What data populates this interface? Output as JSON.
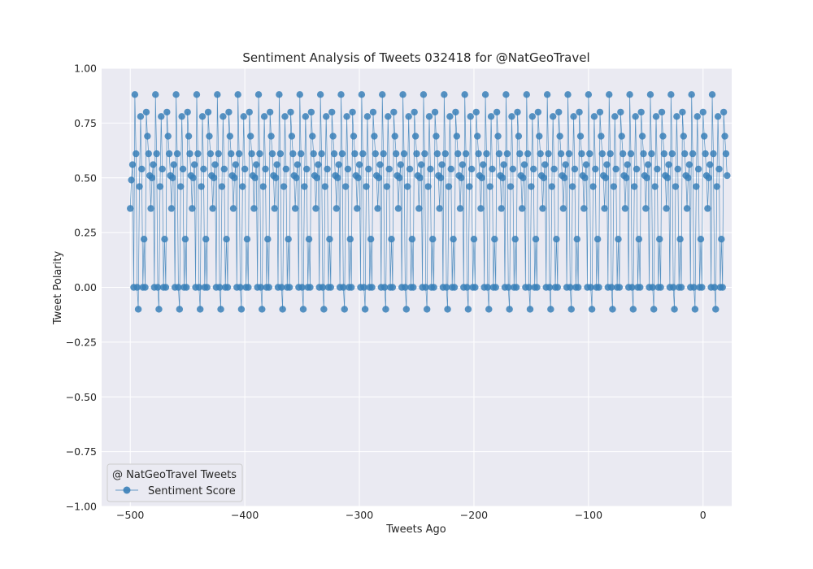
{
  "chart_data": {
    "type": "line",
    "title": "Sentiment Analysis of Tweets 032418 for @NatGeoTravel",
    "xlabel": "Tweets Ago",
    "ylabel": "Tweet Polarity",
    "xlim": [
      -525,
      25
    ],
    "ylim": [
      -1.0,
      1.0
    ],
    "xticks": [
      -500,
      -400,
      -300,
      -200,
      -100,
      0
    ],
    "xtick_labels": [
      "−500",
      "−400",
      "−300",
      "−200",
      "−100",
      "0"
    ],
    "yticks": [
      -1.0,
      -0.75,
      -0.5,
      -0.25,
      0.0,
      0.25,
      0.5,
      0.75,
      1.0
    ],
    "ytick_labels": [
      "−1.00",
      "−0.75",
      "−0.50",
      "−0.25",
      "0.00",
      "0.25",
      "0.50",
      "0.75",
      "1.00"
    ],
    "grid": true,
    "legend": {
      "title": "@ NatGeoTravel Tweets",
      "placement": "lower-left"
    },
    "series": [
      {
        "name": "Sentiment Score",
        "color": "#3a80b8",
        "marker": "circle",
        "x_start": -500,
        "x_step": 1,
        "values": [
          0.36,
          0.49,
          0.56,
          0.0,
          0.88,
          0.61,
          0.0,
          -0.1,
          0.46,
          0.78,
          0.54,
          0.0,
          0.22,
          0.0,
          0.8,
          0.69,
          0.61,
          0.51,
          0.36,
          0.5,
          0.56,
          0.0,
          0.88,
          0.61,
          0.0,
          -0.1,
          0.46,
          0.78,
          0.54,
          0.0,
          0.22,
          0.0,
          0.8,
          0.69,
          0.61,
          0.51,
          0.36,
          0.5,
          0.56,
          0.0,
          0.88,
          0.61,
          0.0,
          -0.1,
          0.46,
          0.78,
          0.54,
          0.0,
          0.22,
          0.0,
          0.8,
          0.69,
          0.61,
          0.51,
          0.36,
          0.5,
          0.56,
          0.0,
          0.88,
          0.61,
          0.0,
          -0.1,
          0.46,
          0.78,
          0.54,
          0.0,
          0.22,
          0.0,
          0.8,
          0.69,
          0.61,
          0.51,
          0.36,
          0.5,
          0.56,
          0.0,
          0.88,
          0.61,
          0.0,
          -0.1,
          0.46,
          0.78,
          0.54,
          0.0,
          0.22,
          0.0,
          0.8,
          0.69,
          0.61,
          0.51,
          0.36,
          0.5,
          0.56,
          0.0,
          0.88,
          0.61,
          0.0,
          -0.1,
          0.46,
          0.78,
          0.54,
          0.0,
          0.22,
          0.0,
          0.8,
          0.69,
          0.61,
          0.51,
          0.36,
          0.5,
          0.56,
          0.0,
          0.88,
          0.61,
          0.0,
          -0.1,
          0.46,
          0.78,
          0.54,
          0.0,
          0.22,
          0.0,
          0.8,
          0.69,
          0.61,
          0.51,
          0.36,
          0.5,
          0.56,
          0.0,
          0.88,
          0.61,
          0.0,
          -0.1,
          0.46,
          0.78,
          0.54,
          0.0,
          0.22,
          0.0,
          0.8,
          0.69,
          0.61,
          0.51,
          0.36,
          0.5,
          0.56,
          0.0,
          0.88,
          0.61,
          0.0,
          -0.1,
          0.46,
          0.78,
          0.54,
          0.0,
          0.22,
          0.0,
          0.8,
          0.69,
          0.61,
          0.51,
          0.36,
          0.5,
          0.56,
          0.0,
          0.88,
          0.61,
          0.0,
          -0.1,
          0.46,
          0.78,
          0.54,
          0.0,
          0.22,
          0.0,
          0.8,
          0.69,
          0.61,
          0.51,
          0.36,
          0.5,
          0.56,
          0.0,
          0.88,
          0.61,
          0.0,
          -0.1,
          0.46,
          0.78,
          0.54,
          0.0,
          0.22,
          0.0,
          0.8,
          0.69,
          0.61,
          0.51,
          0.36,
          0.5,
          0.56,
          0.0,
          0.88,
          0.61,
          0.0,
          -0.1,
          0.46,
          0.78,
          0.54,
          0.0,
          0.22,
          0.0,
          0.8,
          0.69,
          0.61,
          0.51,
          0.36,
          0.5,
          0.56,
          0.0,
          0.88,
          0.61,
          0.0,
          -0.1,
          0.46,
          0.78,
          0.54,
          0.0,
          0.22,
          0.0,
          0.8,
          0.69,
          0.61,
          0.51,
          0.36,
          0.5,
          0.56,
          0.0,
          0.88,
          0.61,
          0.0,
          -0.1,
          0.46,
          0.78,
          0.54,
          0.0,
          0.22,
          0.0,
          0.8,
          0.69,
          0.61,
          0.51,
          0.36,
          0.5,
          0.56,
          0.0,
          0.88,
          0.61,
          0.0,
          -0.1,
          0.46,
          0.78,
          0.54,
          0.0,
          0.22,
          0.0,
          0.8,
          0.69,
          0.61,
          0.51,
          0.36,
          0.5,
          0.56,
          0.0,
          0.88,
          0.61,
          0.0,
          -0.1,
          0.46,
          0.78,
          0.54,
          0.0,
          0.22,
          0.0,
          0.8,
          0.69,
          0.61,
          0.51,
          0.36,
          0.5,
          0.56,
          0.0,
          0.88,
          0.61,
          0.0,
          -0.1,
          0.46,
          0.78,
          0.54,
          0.0,
          0.22,
          0.0,
          0.8,
          0.69,
          0.61,
          0.51,
          0.36,
          0.5,
          0.56,
          0.0,
          0.88,
          0.61,
          0.0,
          -0.1,
          0.46,
          0.78,
          0.54,
          0.0,
          0.22,
          0.0,
          0.8,
          0.69,
          0.61,
          0.51,
          0.36,
          0.5,
          0.56,
          0.0,
          0.88,
          0.61,
          0.0,
          -0.1,
          0.46,
          0.78,
          0.54,
          0.0,
          0.22,
          0.0,
          0.8,
          0.69,
          0.61,
          0.51,
          0.36,
          0.5,
          0.56,
          0.0,
          0.88,
          0.61,
          0.0,
          -0.1,
          0.46,
          0.78,
          0.54,
          0.0,
          0.22,
          0.0,
          0.8,
          0.69,
          0.61,
          0.51,
          0.36,
          0.5,
          0.56,
          0.0,
          0.88,
          0.61,
          0.0,
          -0.1,
          0.46,
          0.78,
          0.54,
          0.0,
          0.22,
          0.0,
          0.8,
          0.69,
          0.61,
          0.51,
          0.36,
          0.5,
          0.56,
          0.0,
          0.88,
          0.61,
          0.0,
          -0.1,
          0.46,
          0.78,
          0.54,
          0.0,
          0.22,
          0.0,
          0.8,
          0.69,
          0.61,
          0.51,
          0.36,
          0.5,
          0.56,
          0.0,
          0.88,
          0.61,
          0.0,
          -0.1,
          0.46,
          0.78,
          0.54,
          0.0,
          0.22,
          0.0,
          0.8,
          0.69,
          0.61,
          0.51,
          0.36,
          0.5,
          0.56,
          0.0,
          0.88,
          0.61,
          0.0,
          -0.1,
          0.46,
          0.78,
          0.54,
          0.0,
          0.22,
          0.0,
          0.8,
          0.69,
          0.61,
          0.51,
          0.36,
          0.5,
          0.56,
          0.0,
          0.88,
          0.61,
          0.0,
          -0.1,
          0.46,
          0.78,
          0.54,
          0.0,
          0.22,
          0.0,
          0.8,
          0.69,
          0.61,
          0.51,
          0.36,
          0.5,
          0.56,
          0.0,
          0.88,
          0.61,
          0.0,
          -0.1,
          0.46,
          0.78,
          0.54,
          0.0,
          0.22,
          0.0,
          0.8,
          0.69,
          0.61,
          0.51,
          0.36,
          0.5,
          0.56,
          0.0,
          0.88,
          0.61,
          0.0,
          -0.1,
          0.46,
          0.78,
          0.54,
          0.0,
          0.22,
          0.0,
          0.8,
          0.69,
          0.61,
          0.51,
          0.36,
          0.5,
          0.56,
          0.0,
          0.88,
          0.61,
          0.0,
          -0.1,
          0.46,
          0.78,
          0.54,
          0.0,
          0.22,
          0.0,
          0.8,
          0.69,
          0.61,
          0.51,
          0.36,
          0.5,
          0.56,
          0.0,
          0.88,
          0.61,
          0.0,
          -0.1,
          0.46,
          0.78,
          0.54,
          0.0,
          0.22,
          0.0,
          0.8,
          0.69,
          0.61,
          0.51
        ]
      }
    ]
  },
  "colors": {
    "plot_background": "#eaeaf2",
    "grid": "#ffffff",
    "series": "#3a80b8"
  }
}
